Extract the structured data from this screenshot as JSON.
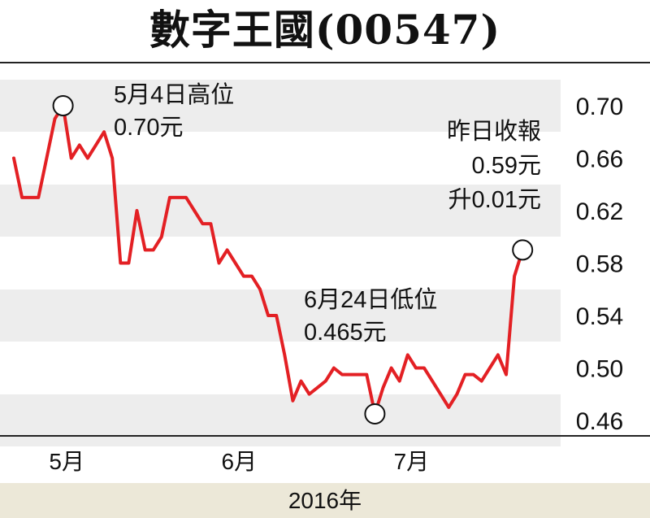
{
  "header": {
    "title": "數字王國(00547)"
  },
  "footer": {
    "year_label": "2016年"
  },
  "annotations": {
    "high": {
      "line1": "5月4日高位",
      "line2": "0.70元"
    },
    "low": {
      "line1": "6月24日低位",
      "line2": "0.465元"
    },
    "close": {
      "line1": "昨日收報",
      "line2": "0.59元",
      "line3": "升0.01元"
    }
  },
  "chart_data": {
    "type": "line",
    "title": "數字王國(00547)",
    "xlabel": "2016年",
    "ylabel": "",
    "ylim": [
      0.45,
      0.72
    ],
    "yticks": [
      0.7,
      0.66,
      0.62,
      0.58,
      0.54,
      0.5,
      0.46
    ],
    "ytick_labels": [
      "0.70",
      "0.66",
      "0.62",
      "0.58",
      "0.54",
      "0.50",
      "0.46"
    ],
    "xlim": [
      1,
      68
    ],
    "xticks": [
      {
        "x": 3,
        "label": "5月"
      },
      {
        "x": 24,
        "label": "6月"
      },
      {
        "x": 45,
        "label": "7月"
      }
    ],
    "grid": "alternating bands",
    "line_color": "#e32024",
    "band_color": "#ededed",
    "x": [
      1,
      2,
      3,
      4,
      5,
      6,
      7,
      8,
      9,
      10,
      11,
      12,
      13,
      14,
      15,
      16,
      17,
      18,
      19,
      20,
      21,
      22,
      23,
      24,
      25,
      26,
      27,
      28,
      29,
      30,
      31,
      32,
      33,
      34,
      35,
      36,
      37,
      38,
      39,
      40,
      41,
      42,
      43,
      44,
      45,
      46,
      47,
      48,
      49,
      50,
      51,
      52,
      53,
      54,
      55,
      56,
      57,
      58,
      59,
      60,
      61,
      62,
      63
    ],
    "series": [
      {
        "values": [
          0.66,
          0.63,
          0.63,
          0.63,
          0.66,
          0.69,
          0.7,
          0.66,
          0.67,
          0.66,
          0.67,
          0.68,
          0.66,
          0.58,
          0.58,
          0.62,
          0.59,
          0.59,
          0.6,
          0.63,
          0.63,
          0.63,
          0.62,
          0.61,
          0.61,
          0.58,
          0.59,
          0.58,
          0.57,
          0.57,
          0.56,
          0.54,
          0.54,
          0.51,
          0.475,
          0.49,
          0.48,
          0.485,
          0.49,
          0.5,
          0.495,
          0.495,
          0.495,
          0.495,
          0.465,
          0.485,
          0.5,
          0.49,
          0.51,
          0.5,
          0.5,
          0.49,
          0.48,
          0.47,
          0.48,
          0.495,
          0.495,
          0.49,
          0.5,
          0.51,
          0.495,
          0.57,
          0.59
        ]
      }
    ],
    "markers": [
      {
        "x": 7,
        "y": 0.7,
        "label": "5月4日高位 0.70元"
      },
      {
        "x": 45,
        "y": 0.465,
        "label": "6月24日低位 0.465元"
      },
      {
        "x": 63,
        "y": 0.59,
        "label": "昨日收報 0.59元 升0.01元"
      }
    ]
  }
}
